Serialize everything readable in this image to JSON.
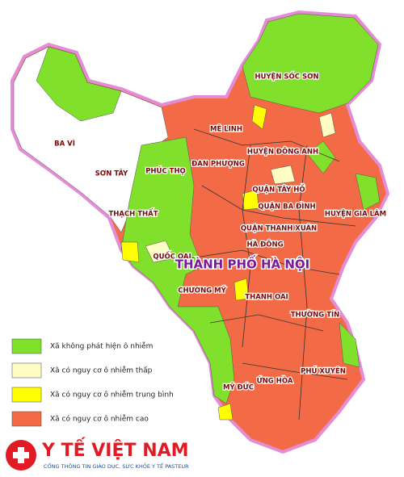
{
  "map": {
    "labels": [
      "HUYỆN SÓC SƠN",
      "BA VÌ",
      "MÊ LINH",
      "HUYỆN ĐÔNG ANH",
      "SƠN TÂY",
      "PHÚC THỌ",
      "ĐAN PHƯỢNG",
      "QUẬN TÂY HỒ",
      "QUẬN BA ĐÌNH",
      "HUYỆN GIA LÂM",
      "THẠCH THẤT",
      "QUẬN THANH XUÂN",
      "HÀ ĐÔNG",
      "QUỐC OAI",
      "CHƯƠNG MỸ",
      "THANH OAI",
      "THƯỜNG TÍN",
      "PHÚ XUYÊN",
      "ỨNG HÒA",
      "MỸ ĐỨC"
    ],
    "city_label": "THÀNH PHỐ HÀ NỘI"
  },
  "legend": {
    "items": [
      {
        "label": "Xã không phát hiện ô nhiễm",
        "color": "#80e02c"
      },
      {
        "label": "Xã có nguy cơ ô nhiễm thấp",
        "color": "#fffcc4"
      },
      {
        "label": "Xã có nguy cơ ô nhiễm trung bình",
        "color": "#ffff00"
      },
      {
        "label": "Xã có nguy cơ ô nhiễm cao",
        "color": "#f26b46"
      }
    ]
  },
  "logo": {
    "title": "Y TẾ VIỆT NAM",
    "subtitle": "CỔNG THÔNG TIN GIÁO DỤC, SỨC KHỎE Y TẾ PASTEUR"
  }
}
